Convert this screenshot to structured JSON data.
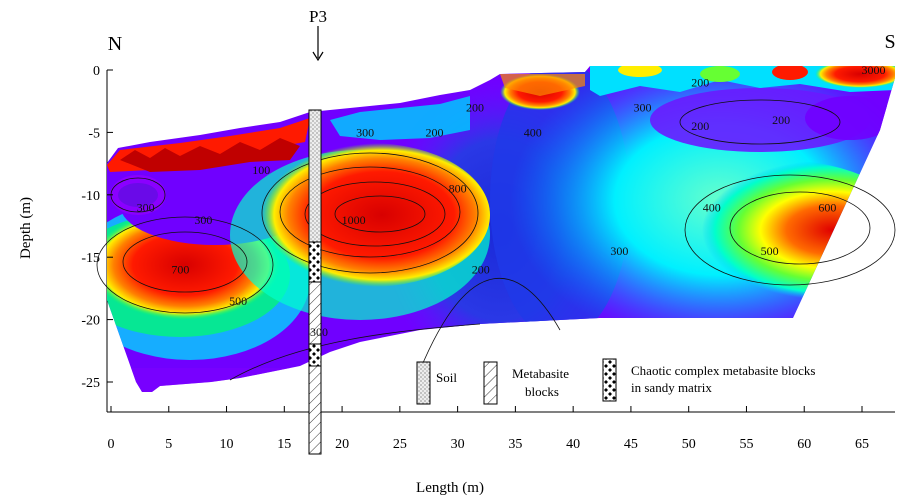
{
  "chart_data": {
    "type": "heatmap",
    "title": "",
    "xlabel": "Length (m)",
    "ylabel": "Depth (m)",
    "xlim": [
      -1,
      69
    ],
    "ylim": [
      -27,
      0
    ],
    "x_ticks": [
      "0",
      "5",
      "10",
      "15",
      "20",
      "25",
      "30",
      "35",
      "40",
      "45",
      "50",
      "55",
      "60",
      "65"
    ],
    "y_ticks": [
      "0",
      "-5",
      "-10",
      "-15",
      "-20",
      "-25"
    ],
    "direction_labels": {
      "left": "N",
      "right": "S"
    },
    "borehole": {
      "label": "P3",
      "x": 17.8
    },
    "contour_labels": [
      {
        "text": "200",
        "x": 31.5,
        "y": -3
      },
      {
        "text": "300",
        "x": 22,
        "y": -5
      },
      {
        "text": "200",
        "x": 28,
        "y": -5
      },
      {
        "text": "400",
        "x": 36.5,
        "y": -5
      },
      {
        "text": "200",
        "x": 51,
        "y": -1
      },
      {
        "text": "1000",
        "x": 3000,
        "y": 0
      },
      {
        "text": "300",
        "x": 46,
        "y": -3
      },
      {
        "text": "200",
        "x": 51,
        "y": -4.5
      },
      {
        "text": "200",
        "x": 58,
        "y": -4
      },
      {
        "text": "100",
        "x": 13,
        "y": -8
      },
      {
        "text": "800",
        "x": 30,
        "y": -9.5
      },
      {
        "text": "300",
        "x": 3,
        "y": -11
      },
      {
        "text": "300",
        "x": 8,
        "y": -12
      },
      {
        "text": "1000",
        "x": 21,
        "y": -12
      },
      {
        "text": "400",
        "x": 52,
        "y": -11
      },
      {
        "text": "600",
        "x": 62,
        "y": -11
      },
      {
        "text": "300",
        "x": 44,
        "y": -14.5
      },
      {
        "text": "500",
        "x": 57,
        "y": -14.5
      },
      {
        "text": "700",
        "x": 6,
        "y": -16
      },
      {
        "text": "200",
        "x": 32,
        "y": -16
      },
      {
        "text": "500",
        "x": 11,
        "y": -18.5
      },
      {
        "text": "300",
        "x": 18,
        "y": -21
      }
    ],
    "legend": [
      {
        "label": "Soil",
        "pattern": "soil"
      },
      {
        "label": "Metabasite blocks",
        "pattern": "metabasite"
      },
      {
        "label": "Chaotic complex metabasite blocks in sandy matrix",
        "pattern": "chaotic"
      }
    ],
    "colors": [
      "#7a00ff",
      "#1e1ee0",
      "#00e8ff",
      "#00ff66",
      "#ffff00",
      "#ff8000",
      "#ff0000"
    ]
  },
  "legend_text": {
    "soil": "Soil",
    "meta1": "Metabasite",
    "meta2": "blocks",
    "chaotic1": "Chaotic complex metabasite blocks",
    "chaotic2": "in sandy matrix"
  },
  "contour_fix": {
    "top_value": "3000"
  }
}
